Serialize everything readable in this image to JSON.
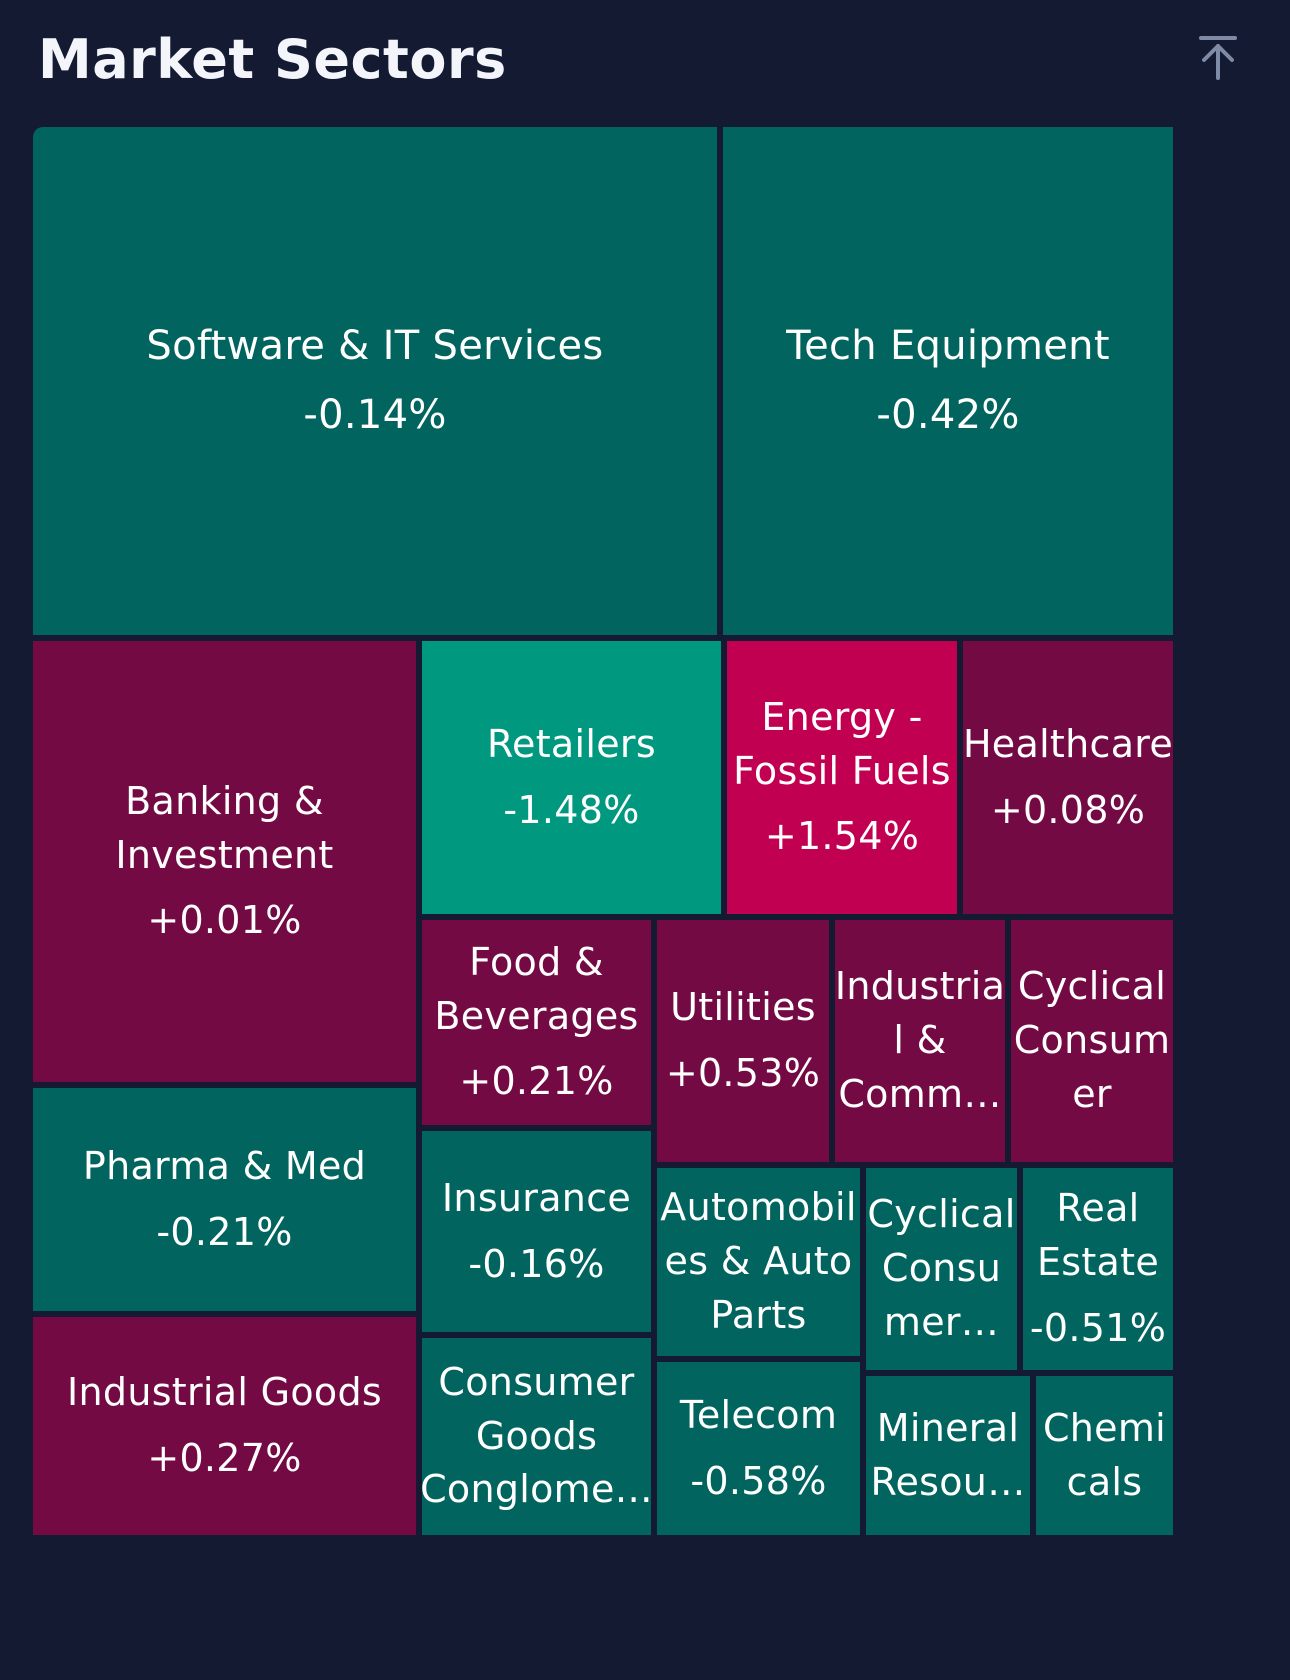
{
  "header": {
    "title": "Market Sectors",
    "collapse_icon": "arrow-up-to-top-icon"
  },
  "colors": {
    "background": "#131a32",
    "down": "#01645e",
    "down_strong": "#019880",
    "up": "#740a44",
    "up_strong": "#c20051"
  },
  "chart_data": {
    "type": "treemap",
    "title": "Market Sectors",
    "sectors": [
      {
        "name": "Software & IT Services",
        "change": "-0.14%",
        "value": -0.14
      },
      {
        "name": "Tech Equipment",
        "change": "-0.42%",
        "value": -0.42
      },
      {
        "name": "Banking &\nInvestment",
        "change": "+0.01%",
        "value": 0.01
      },
      {
        "name": "Retailers",
        "change": "-1.48%",
        "value": -1.48
      },
      {
        "name": "Energy -\nFossil Fuels",
        "change": "+1.54%",
        "value": 1.54
      },
      {
        "name": "Healthcare",
        "change": "+0.08%",
        "value": 0.08
      },
      {
        "name": "Food &\nBeverages",
        "change": "+0.21%",
        "value": 0.21
      },
      {
        "name": "Utilities",
        "change": "+0.53%",
        "value": 0.53
      },
      {
        "name": "Industria\nl &\nComm…",
        "change": "",
        "value": null
      },
      {
        "name": "Cyclical\nConsum\ner",
        "change": "",
        "value": null
      },
      {
        "name": "Pharma & Med",
        "change": "-0.21%",
        "value": -0.21
      },
      {
        "name": "Insurance",
        "change": "-0.16%",
        "value": -0.16
      },
      {
        "name": "Automobil\nes & Auto\nParts",
        "change": "",
        "value": null
      },
      {
        "name": "Cyclical\nConsu\nmer…",
        "change": "",
        "value": null
      },
      {
        "name": "Real\nEstate",
        "change": "-0.51%",
        "value": -0.51
      },
      {
        "name": "Industrial Goods",
        "change": "+0.27%",
        "value": 0.27
      },
      {
        "name": "Consumer\nGoods\nConglome…",
        "change": "",
        "value": null
      },
      {
        "name": "Telecom",
        "change": "-0.58%",
        "value": -0.58
      },
      {
        "name": "Mineral\nResou…",
        "change": "",
        "value": null
      },
      {
        "name": "Chemi\ncals",
        "change": "",
        "value": null
      }
    ]
  }
}
